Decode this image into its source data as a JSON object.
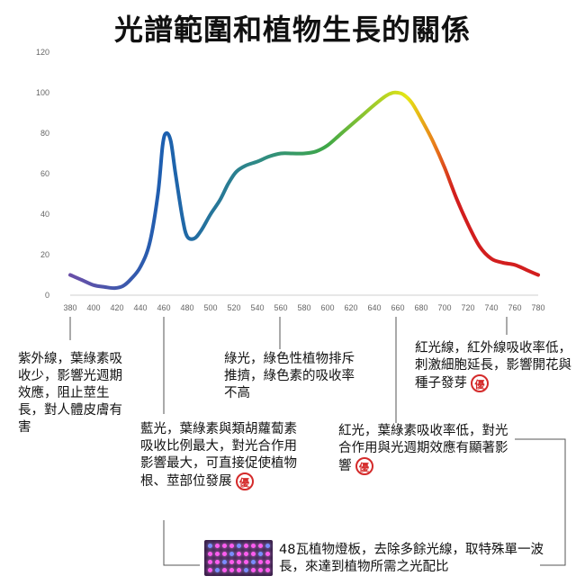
{
  "page": {
    "title": "光譜範圍和植物生長的關係"
  },
  "chart_data": {
    "type": "line",
    "title": "光譜範圍和植物生長的關係",
    "xlabel": "",
    "ylabel": "",
    "xlim": [
      380,
      780
    ],
    "ylim": [
      0,
      120
    ],
    "x_ticks": [
      380,
      400,
      420,
      440,
      460,
      480,
      500,
      520,
      540,
      560,
      580,
      600,
      620,
      640,
      660,
      680,
      700,
      720,
      740,
      760,
      780
    ],
    "y_ticks": [
      0,
      20,
      40,
      60,
      80,
      100,
      120
    ],
    "grid": false,
    "legend": "none",
    "x": [
      380,
      390,
      400,
      410,
      418,
      425,
      432,
      440,
      448,
      455,
      459,
      462,
      466,
      470,
      476,
      480,
      486,
      492,
      500,
      508,
      515,
      522,
      530,
      540,
      550,
      560,
      570,
      580,
      590,
      600,
      610,
      620,
      630,
      640,
      650,
      656,
      660,
      665,
      672,
      680,
      690,
      700,
      710,
      720,
      730,
      740,
      750,
      760,
      770,
      780
    ],
    "y": [
      10,
      7.5,
      5,
      4,
      3.5,
      4.5,
      8,
      14,
      26,
      50,
      74,
      80,
      76,
      60,
      38,
      29,
      28,
      32,
      40,
      47,
      55,
      61,
      64,
      66,
      68.5,
      70,
      70,
      70,
      71,
      74,
      79,
      84,
      89,
      94,
      98.5,
      100,
      100,
      99,
      95,
      87,
      76,
      63,
      48,
      35,
      24,
      18,
      16,
      15,
      12.5,
      10
    ],
    "colors": {
      "violet": "#6a4fa8",
      "blue": "#1c5fb0",
      "teal": "#2f8a86",
      "green": "#3fa847",
      "yellow": "#e6e615",
      "orange": "#e87a1a",
      "red": "#d21e1e"
    }
  },
  "annotations": {
    "uv": "紫外線，葉綠素吸收少，影響光週期效應，阻止莖生長，對人體皮膚有害",
    "blue": "藍光，葉綠素與類胡蘿蔔素吸收比例最大，對光合作用影響最大，可直接促使植物根、莖部位發展",
    "green": "綠光，綠色性植物排斥推擠，綠色素的吸收率不高",
    "infrared": "紅光線，紅外線吸收率低，刺激細胞延長，影響開花與種子發芽",
    "red": "紅光，葉綠素吸收率低，對光合作用與光週期效應有顯著影響",
    "lamp": "48瓦植物燈板，去除多餘光線，取特殊單一波長，來達到植物所需之光配比",
    "seal_char": "優"
  }
}
